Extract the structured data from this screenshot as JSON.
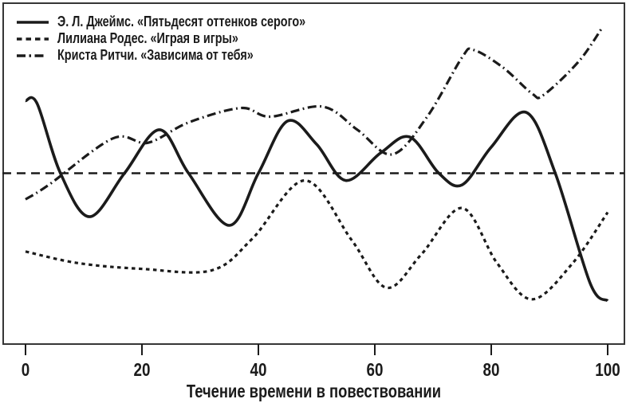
{
  "chart_data": {
    "type": "line",
    "xlabel": "Течение времени в повествовании",
    "x_ticks": [
      0,
      20,
      40,
      60,
      80,
      100
    ],
    "xlim": [
      0,
      100
    ],
    "ylim": [
      -1.18,
      1.18
    ],
    "baseline": 0,
    "grid": false,
    "legend_position": "top-left-inside",
    "colors": {
      "line": "#1b1b1b",
      "frame": "#363636",
      "text": "#1b1b1b",
      "background": "#ffffff"
    },
    "series": [
      {
        "name": "Э. Л. Джеймс. «Пятьдесят оттенков серого»",
        "line_style": "solid",
        "points": [
          [
            0,
            0.5
          ],
          [
            2,
            0.48
          ],
          [
            6,
            0
          ],
          [
            11,
            -0.3
          ],
          [
            17,
            0
          ],
          [
            23,
            0.3
          ],
          [
            28,
            0
          ],
          [
            35,
            -0.36
          ],
          [
            40,
            0
          ],
          [
            45,
            0.36
          ],
          [
            50,
            0.2
          ],
          [
            55,
            -0.05
          ],
          [
            61,
            0.14
          ],
          [
            66,
            0.25
          ],
          [
            71,
            0
          ],
          [
            75,
            -0.08
          ],
          [
            80,
            0.18
          ],
          [
            86,
            0.42
          ],
          [
            91,
            0
          ],
          [
            97,
            -0.76
          ],
          [
            100,
            -0.88
          ]
        ]
      },
      {
        "name": "Лилиана Родес. «Играя в игры»",
        "line_style": "dotted",
        "points": [
          [
            0,
            -0.54
          ],
          [
            9,
            -0.62
          ],
          [
            20,
            -0.66
          ],
          [
            32,
            -0.67
          ],
          [
            39,
            -0.45
          ],
          [
            48,
            -0.05
          ],
          [
            56,
            -0.46
          ],
          [
            62,
            -0.79
          ],
          [
            68,
            -0.56
          ],
          [
            75,
            -0.24
          ],
          [
            81,
            -0.62
          ],
          [
            87,
            -0.87
          ],
          [
            94,
            -0.62
          ],
          [
            100,
            -0.27
          ]
        ]
      },
      {
        "name": "Криста Ритчи. «Зависима от тебя»",
        "line_style": "dashdot",
        "points": [
          [
            0,
            -0.18
          ],
          [
            4,
            -0.08
          ],
          [
            15,
            0.24
          ],
          [
            21,
            0.21
          ],
          [
            28,
            0.35
          ],
          [
            37,
            0.45
          ],
          [
            42,
            0.39
          ],
          [
            51,
            0.46
          ],
          [
            57,
            0.3
          ],
          [
            63,
            0.13
          ],
          [
            69,
            0.39
          ],
          [
            75,
            0.8
          ],
          [
            77,
            0.85
          ],
          [
            82,
            0.73
          ],
          [
            87,
            0.55
          ],
          [
            89,
            0.54
          ],
          [
            95,
            0.77
          ],
          [
            99,
            1.0
          ]
        ]
      }
    ]
  }
}
